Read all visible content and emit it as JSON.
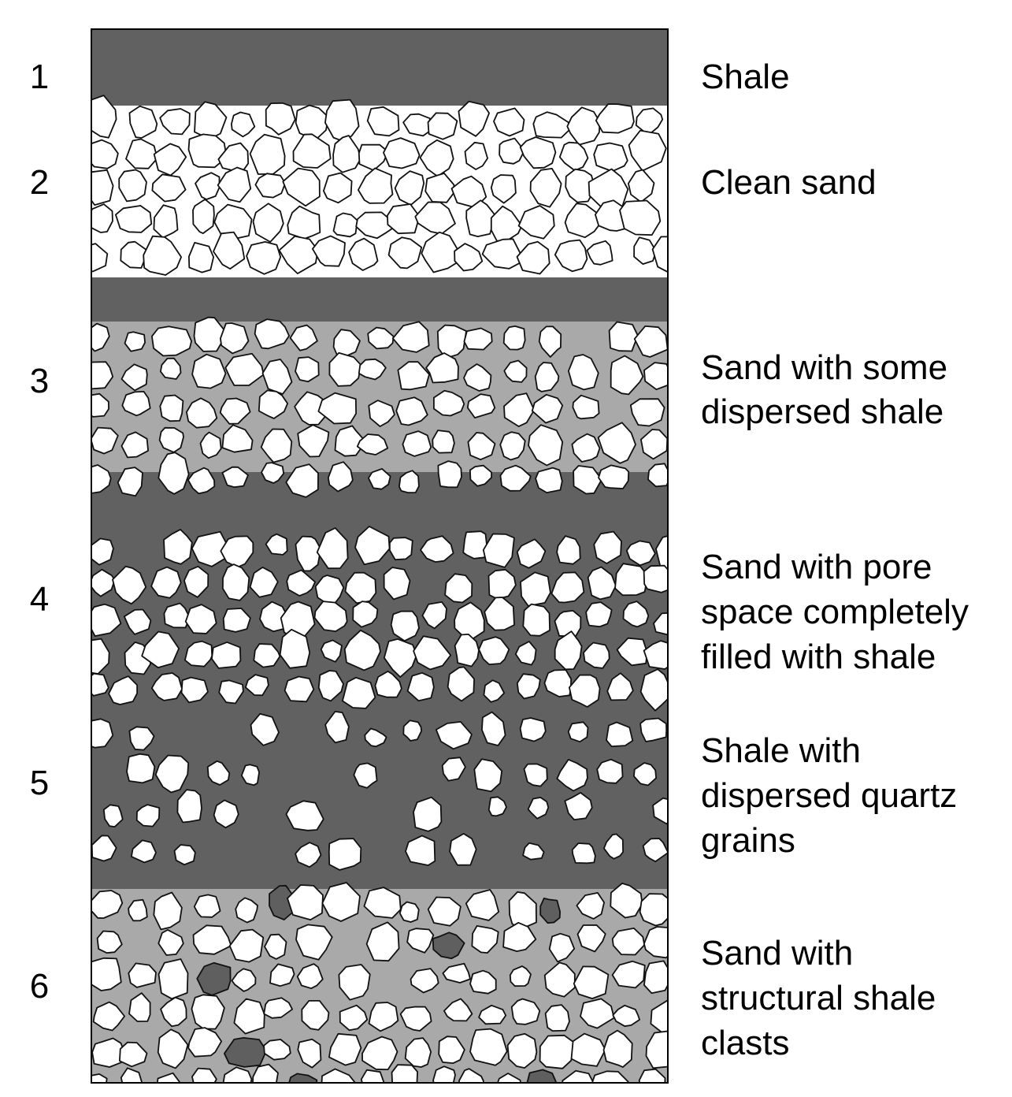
{
  "layers": [
    {
      "id": "1",
      "number": "1",
      "type": "shale",
      "label_lines": [
        "Shale"
      ]
    },
    {
      "id": "2",
      "number": "2",
      "type": "clean-sand",
      "label_lines": [
        "Clean sand"
      ]
    },
    {
      "id": "3",
      "number": "3",
      "type": "sand-dispersed-shale",
      "label_lines": [
        "Sand with some",
        "dispersed shale"
      ]
    },
    {
      "id": "4",
      "number": "4",
      "type": "sand-pores-filled-shale",
      "label_lines": [
        "Sand with pore",
        "space completely",
        "filled with shale"
      ]
    },
    {
      "id": "5",
      "number": "5",
      "type": "shale-dispersed-quartz",
      "label_lines": [
        "Shale with",
        "dispersed quartz",
        "grains"
      ]
    },
    {
      "id": "6",
      "number": "6",
      "type": "sand-structural-shale-clasts",
      "label_lines": [
        "Sand with",
        "structural shale",
        "clasts"
      ]
    }
  ],
  "colors": {
    "shale": "#616161",
    "sand_matrix_light": "#a9a9a9",
    "clean_sand_matrix": "#ffffff",
    "grain_fill": "#ffffff",
    "grain_stroke": "#111111",
    "clast_fill": "#5f5f5f",
    "text": "#000000"
  }
}
